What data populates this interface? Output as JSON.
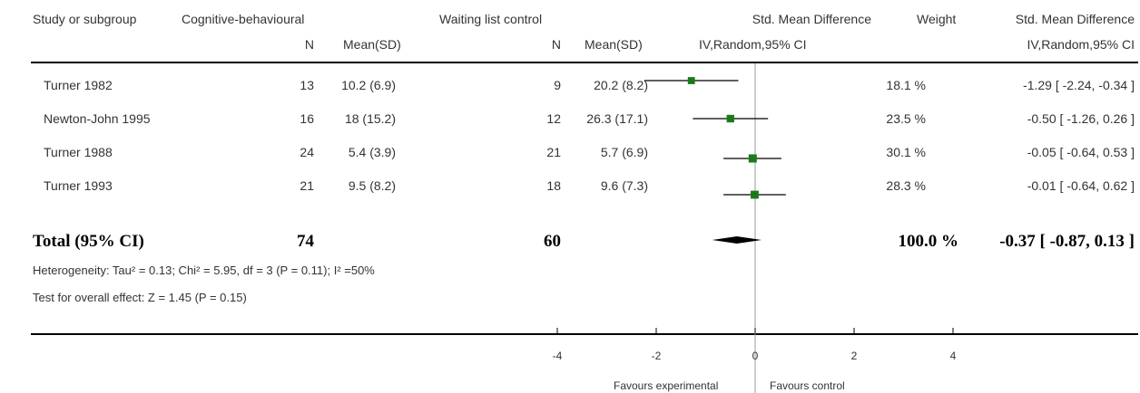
{
  "header": {
    "study": "Study or subgroup",
    "group_exp": "Cognitive-behavioural",
    "group_ctrl": "Waiting list control",
    "n_label": "N",
    "mean_label": "Mean(SD)",
    "effect_title": "Std. Mean Difference",
    "effect_method": "IV,Random,95% CI",
    "weight": "Weight",
    "effect_title2": "Std. Mean Difference",
    "effect_method2": "IV,Random,95% CI"
  },
  "rows": [
    {
      "study": "Turner 1982",
      "n_e": "13",
      "mean_e": "10.2 (6.9)",
      "n_c": "9",
      "mean_c": "20.2 (8.2)",
      "weight": "18.1 %",
      "ci_text": "-1.29 [ -2.24, -0.34 ]"
    },
    {
      "study": "Newton-John 1995",
      "n_e": "16",
      "mean_e": "18 (15.2)",
      "n_c": "12",
      "mean_c": "26.3 (17.1)",
      "weight": "23.5 %",
      "ci_text": "-0.50 [ -1.26, 0.26 ]"
    },
    {
      "study": "Turner 1988",
      "n_e": "24",
      "mean_e": "5.4 (3.9)",
      "n_c": "21",
      "mean_c": "5.7 (6.9)",
      "weight": "30.1 %",
      "ci_text": "-0.05 [ -0.64, 0.53 ]"
    },
    {
      "study": "Turner 1993",
      "n_e": "21",
      "mean_e": "9.5 (8.2)",
      "n_c": "18",
      "mean_c": "9.6 (7.3)",
      "weight": "28.3 %",
      "ci_text": "-0.01 [ -0.64, 0.62 ]"
    }
  ],
  "total": {
    "label": "Total (95% CI)",
    "n_e": "74",
    "n_c": "60",
    "weight": "100.0 %",
    "ci_text": "-0.37 [ -0.87, 0.13 ]"
  },
  "heterogeneity": "Heterogeneity: Tau² = 0.13; Chi² = 5.95, df = 3 (P = 0.11); I² =50%",
  "overall_effect": "Test for overall effect: Z = 1.45 (P = 0.15)",
  "axis_footer": {
    "favours_left": "Favours experimental",
    "favours_right": "Favours control"
  },
  "colors": {
    "marker": "#1a7a1a",
    "line": "#000000",
    "zero_line": "#999999"
  },
  "chart_data": {
    "type": "scatter",
    "title": "Std. Mean Difference",
    "xlabel": "IV,Random,95% CI",
    "xlim": [
      -4,
      4
    ],
    "xticks": [
      -4,
      -2,
      0,
      2,
      4
    ],
    "studies": [
      {
        "name": "Turner 1982",
        "estimate": -1.29,
        "lower": -2.24,
        "upper": -0.34,
        "weight": 18.1
      },
      {
        "name": "Newton-John 1995",
        "estimate": -0.5,
        "lower": -1.26,
        "upper": 0.26,
        "weight": 23.5
      },
      {
        "name": "Turner 1988",
        "estimate": -0.05,
        "lower": -0.64,
        "upper": 0.53,
        "weight": 30.1
      },
      {
        "name": "Turner 1993",
        "estimate": -0.01,
        "lower": -0.64,
        "upper": 0.62,
        "weight": 28.3
      }
    ],
    "pooled": {
      "name": "Total (95% CI)",
      "estimate": -0.37,
      "lower": -0.87,
      "upper": 0.13,
      "weight": 100.0
    }
  }
}
